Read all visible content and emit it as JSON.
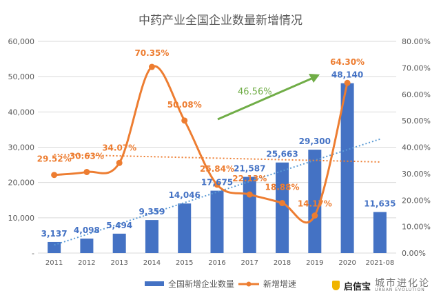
{
  "chart_data": {
    "type": "bar+line",
    "title": "中药产业全国企业数量新增情况",
    "categories": [
      "2011",
      "2012",
      "2013",
      "2014",
      "2015",
      "2016",
      "2017",
      "2018",
      "2019",
      "2020",
      "2021-08"
    ],
    "series": [
      {
        "name": "全国新增企业数量",
        "type": "bar",
        "axis": "left",
        "color": "#4472C4",
        "values": [
          3137,
          4098,
          5494,
          9359,
          14046,
          17675,
          21587,
          25663,
          29300,
          48140,
          11635
        ],
        "labels": [
          "3,137",
          "4,098",
          "5,494",
          "9,359",
          "14,046",
          "17,675",
          "21,587",
          "25,663",
          "29,300",
          "48,140",
          "11,635"
        ]
      },
      {
        "name": "新增增速",
        "type": "line",
        "axis": "right",
        "color": "#ED7D31",
        "values": [
          29.52,
          30.63,
          34.07,
          70.35,
          50.08,
          25.84,
          22.13,
          18.88,
          14.17,
          64.3,
          null
        ],
        "labels": [
          "29.52%",
          "30.63%",
          "34.07%",
          "70.35%",
          "50.08%",
          "25.84%",
          "22.13%",
          "18.88%",
          "14.17%",
          "64.30%",
          ""
        ]
      }
    ],
    "trendlines": [
      {
        "of": "全国新增企业数量",
        "style": "dotted",
        "color": "#5B9BD5"
      },
      {
        "of": "新增增速",
        "style": "dotted",
        "color": "#ED7D31"
      }
    ],
    "annotation": {
      "text": "46.56%",
      "color": "#70AD47",
      "arrow": "up-right"
    },
    "ylim_left": [
      0,
      60000
    ],
    "yticks_left": [
      "-",
      "10,000",
      "20,000",
      "30,000",
      "40,000",
      "50,000",
      "60,000"
    ],
    "ylim_right": [
      0,
      80
    ],
    "yticks_right": [
      "0.00%",
      "10.00%",
      "20.00%",
      "30.00%",
      "40.00%",
      "50.00%",
      "60.00%",
      "70.00%",
      "80.00%"
    ],
    "grid": true,
    "legend_position": "bottom"
  },
  "brand": {
    "logo1": "启信宝",
    "logo2": "城市进化论",
    "logo2_sub": "URBAN EVOLUTION"
  }
}
